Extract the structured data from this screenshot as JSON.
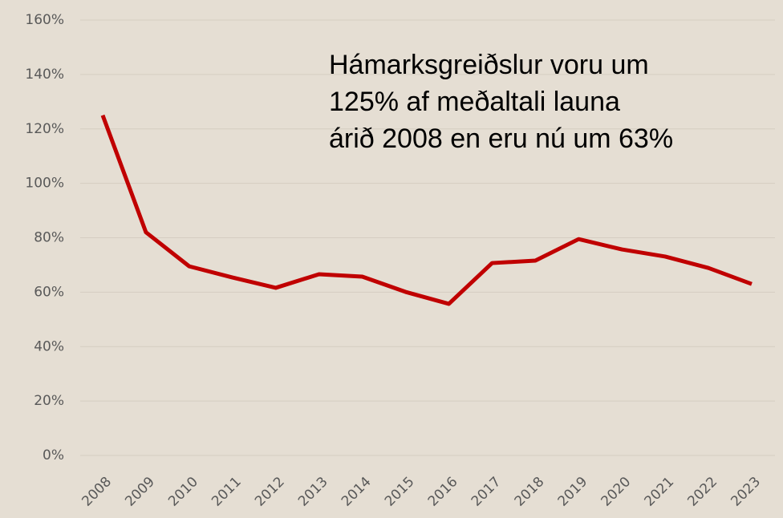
{
  "chart_data": {
    "type": "line",
    "annotation": [
      "Hámarksgreiðslur voru um",
      "125% af meðaltali launa",
      "árið 2008 en eru nú um 63%"
    ],
    "categories": [
      "2008",
      "2009",
      "2010",
      "2011",
      "2012",
      "2013",
      "2014",
      "2015",
      "2016",
      "2017",
      "2018",
      "2019",
      "2020",
      "2021",
      "2022",
      "2023"
    ],
    "series": [
      {
        "color": "#c00000",
        "values": [
          125,
          82,
          69.5,
          65.4,
          61.6,
          66.6,
          65.7,
          60.1,
          55.7,
          70.7,
          71.6,
          79.5,
          75.7,
          73.1,
          68.9,
          63
        ]
      }
    ],
    "ylim": [
      0,
      160
    ],
    "yticks": [
      {
        "value": 0,
        "label": "0%"
      },
      {
        "value": 20,
        "label": "20%"
      },
      {
        "value": 40,
        "label": "40%"
      },
      {
        "value": 60,
        "label": "60%"
      },
      {
        "value": 80,
        "label": "80%"
      },
      {
        "value": 100,
        "label": "100%"
      },
      {
        "value": 120,
        "label": "120%"
      },
      {
        "value": 140,
        "label": "140%"
      },
      {
        "value": 160,
        "label": "160%"
      }
    ],
    "grid": true
  }
}
